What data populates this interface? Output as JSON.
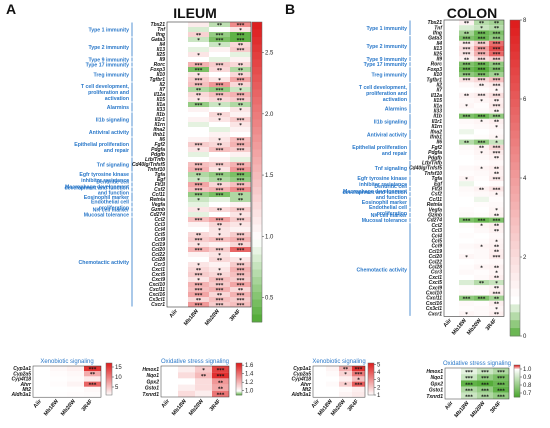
{
  "panels": {
    "a": "A",
    "b": "B"
  },
  "titles": {
    "ileum": "ILEUM",
    "colon": "COLON"
  },
  "columns": [
    "Aiir",
    "Mb18W",
    "Mb20W",
    "3R4F"
  ],
  "genes": [
    "Tbx21",
    "Tnf",
    "Ifng",
    "Gata3",
    "Il4",
    "Il13",
    "Il25",
    "Il9",
    "Rorc",
    "Foxp3",
    "Il10",
    "Tgfbr1",
    "Il2",
    "Il7",
    "Il12a",
    "Il15",
    "Il1a",
    "Il33",
    "Il1b",
    "Il1r1",
    "Il1rn",
    "Ifna2",
    "Ifnb1",
    "Il6",
    "Fgf2",
    "Pdgfa",
    "Pdgfb",
    "Ltb/Tnfb",
    "Cd40lg/Tnfsf5",
    "Tnfsf10",
    "Tgfa",
    "Egf",
    "Flt3l",
    "Csf2",
    "Ccl11",
    "Retnla",
    "Vegfa",
    "Gzmb",
    "Cd274",
    "Ccl2",
    "Ccl3",
    "Ccl4",
    "Ccl5",
    "Ccl9",
    "Ccl19",
    "Ccl20",
    "Ccl22",
    "Ccl28",
    "Ccr3",
    "Cxcl1",
    "Cxcl5",
    "Cxcl9",
    "Cxcl10",
    "Cxcl11",
    "Cxcl16",
    "Cx3cl1",
    "Cxcr1"
  ],
  "categories": [
    {
      "label": "Type 1 immunity",
      "start": 0,
      "end": 2
    },
    {
      "label": "Type 2 immunity",
      "start": 3,
      "end": 6
    },
    {
      "label": "Type 9 immunity",
      "start": 7,
      "end": 7
    },
    {
      "label": "Type 17 immunity",
      "start": 8,
      "end": 8
    },
    {
      "label": "Treg immunity",
      "start": 9,
      "end": 11
    },
    {
      "label": "T cell development, proliferation and activation",
      "start": 12,
      "end": 15
    },
    {
      "label": "Alarmins",
      "start": 16,
      "end": 17
    },
    {
      "label": "Il1b signaling",
      "start": 18,
      "end": 20
    },
    {
      "label": "Antiviral activity",
      "start": 21,
      "end": 22
    },
    {
      "label": "Epithelial proliferation and repair",
      "start": 23,
      "end": 26
    },
    {
      "label": "Tnf signaling",
      "start": 27,
      "end": 29
    },
    {
      "label": "Egfr tyrosine kinase inhibitor resistance",
      "start": 30,
      "end": 31
    },
    {
      "label": "Dendritic cell development and function",
      "start": 32,
      "end": 32
    },
    {
      "label": "Macrophage development and function",
      "start": 33,
      "end": 33
    },
    {
      "label": "Eosinophil marker",
      "start": 34,
      "end": 35
    },
    {
      "label": "Endothelial cell proliferation",
      "start": 36,
      "end": 36
    },
    {
      "label": "NK cell marker",
      "start": 37,
      "end": 37
    },
    {
      "label": "Mucosal tolerance",
      "start": 38,
      "end": 38
    },
    {
      "label": "Chemotactic activity",
      "start": 39,
      "end": 56
    }
  ],
  "xeno_genes": [
    "Cyp1a1",
    "Cyp2a5",
    "Cyp4f18",
    "Ahrr",
    "Mt2",
    "Aldh3a1"
  ],
  "oxid_genes": [
    "Hmox1",
    "Nqo1",
    "Gpx2",
    "Gsto1",
    "Txnrd1"
  ],
  "sub_titles": {
    "xeno": "Xenobiotic signaling",
    "oxid": "Oxidative stress signaling"
  },
  "chart_data": [
    {
      "type": "heatmap",
      "panel": "A",
      "title": "ILEUM",
      "columns": [
        "Aiir",
        "Mb18W",
        "Mb20W",
        "3R4F"
      ],
      "colorbar": {
        "min": 0.3,
        "max": 2.75,
        "ticks": [
          0.5,
          1.0,
          1.5,
          2.0,
          2.5
        ]
      },
      "values": [
        [
          1,
          1.15,
          0.75,
          1.9
        ],
        [
          1,
          0.85,
          1.0,
          1.2
        ],
        [
          1,
          1.35,
          0.6,
          0.4
        ],
        [
          1,
          0.8,
          0.5,
          0.4
        ],
        [
          1,
          1.0,
          0.8,
          1.3
        ],
        [
          1,
          0.9,
          1.1,
          1.4
        ],
        [
          1,
          1.2,
          1.0,
          0.9
        ],
        [
          1,
          1.0,
          0.9,
          1.1
        ],
        [
          1,
          1.6,
          1.4,
          1.3
        ],
        [
          1,
          0.5,
          1.3,
          0.7
        ],
        [
          1,
          1.2,
          1.0,
          1.3
        ],
        [
          1,
          1.4,
          1.2,
          1.7
        ],
        [
          1,
          1.5,
          1.8,
          1.3
        ],
        [
          1,
          0.7,
          0.6,
          0.8
        ],
        [
          1,
          1.3,
          1.5,
          1.6
        ],
        [
          1,
          1.2,
          1.3,
          1.4
        ],
        [
          1,
          0.6,
          0.8,
          0.7
        ],
        [
          1,
          1.1,
          1.0,
          1.2
        ],
        [
          1,
          1.0,
          1.3,
          1.1
        ],
        [
          1,
          1.1,
          1.2,
          1.4
        ],
        [
          1,
          0.9,
          1.0,
          1.2
        ],
        [
          1,
          1.0,
          0.9,
          1.1
        ],
        [
          1,
          1.0,
          1.1,
          1.0
        ],
        [
          1,
          1.1,
          1.2,
          1.5
        ],
        [
          1,
          1.4,
          1.3,
          1.6
        ],
        [
          1,
          1.2,
          1.5,
          1.4
        ],
        [
          1,
          0.9,
          1.0,
          1.1
        ],
        [
          1,
          1.0,
          1.1,
          0.9
        ],
        [
          1,
          1.5,
          1.4,
          1.6
        ],
        [
          1,
          1.6,
          1.2,
          1.8
        ],
        [
          1,
          0.7,
          0.6,
          0.5
        ],
        [
          1,
          0.8,
          0.7,
          0.6
        ],
        [
          1,
          1.7,
          1.3,
          1.5
        ],
        [
          1,
          1.5,
          1.6,
          1.9
        ],
        [
          1,
          0.6,
          0.5,
          0.7
        ],
        [
          1,
          0.8,
          0.9,
          0.7
        ],
        [
          1,
          0.9,
          1.0,
          1.1
        ],
        [
          1,
          1.2,
          1.3,
          1.4
        ],
        [
          1,
          0.9,
          1.0,
          1.2
        ],
        [
          1,
          1.5,
          1.7,
          1.4
        ],
        [
          1,
          1.1,
          1.3,
          1.2
        ],
        [
          1,
          1.0,
          1.2,
          1.1
        ],
        [
          1,
          1.3,
          1.2,
          1.4
        ],
        [
          1,
          1.4,
          1.5,
          1.6
        ],
        [
          1,
          1.2,
          1.1,
          1.3
        ],
        [
          1,
          1.6,
          1.4,
          2.2
        ],
        [
          1,
          1.1,
          1.2,
          1.0
        ],
        [
          1,
          1.0,
          1.3,
          1.2
        ],
        [
          1,
          1.2,
          1.1,
          1.4
        ],
        [
          1,
          1.3,
          1.2,
          1.6
        ],
        [
          1,
          1.4,
          1.3,
          1.5
        ],
        [
          1,
          1.2,
          1.5,
          1.4
        ],
        [
          1,
          1.6,
          1.4,
          1.7
        ],
        [
          1,
          1.5,
          1.6,
          1.3
        ],
        [
          1,
          1.7,
          1.3,
          1.6
        ],
        [
          1,
          1.3,
          1.5,
          1.4
        ],
        [
          1,
          1.8,
          1.4,
          1.5
        ]
      ]
    },
    {
      "type": "heatmap",
      "panel": "B",
      "title": "COLON",
      "columns": [
        "Aiir",
        "Mb18W",
        "Mb20W",
        "3R4F"
      ],
      "colorbar": {
        "min": 0,
        "max": 8,
        "ticks": [
          0,
          2,
          4,
          6,
          8
        ]
      },
      "values": [
        [
          1,
          1.4,
          0.6,
          0.5
        ],
        [
          1,
          0.8,
          0.7,
          0.6
        ],
        [
          1,
          0.5,
          0.2,
          0.3
        ],
        [
          1,
          0.3,
          0.2,
          0.4
        ],
        [
          1,
          1.6,
          2.5,
          5.5
        ],
        [
          1,
          2.0,
          4.0,
          6.5
        ],
        [
          1,
          1.8,
          3.5,
          5.8
        ],
        [
          1,
          1.4,
          2.0,
          2.5
        ],
        [
          1,
          0.3,
          0.2,
          0.4
        ],
        [
          1,
          0.2,
          0.1,
          0.3
        ],
        [
          1,
          0.4,
          0.3,
          0.5
        ],
        [
          1,
          1.8,
          2.2,
          3.0
        ],
        [
          1,
          1.2,
          1.4,
          1.6
        ],
        [
          1,
          1.0,
          1.1,
          1.3
        ],
        [
          1,
          1.4,
          1.6,
          2.0
        ],
        [
          1,
          1.2,
          1.3,
          1.5
        ],
        [
          1,
          1.3,
          1.1,
          1.7
        ],
        [
          1,
          1.1,
          1.2,
          1.4
        ],
        [
          1,
          0.3,
          0.2,
          0.4
        ],
        [
          1,
          1.2,
          1.3,
          1.5
        ],
        [
          1,
          1.1,
          1.2,
          1.3
        ],
        [
          1,
          0.9,
          1.0,
          1.2
        ],
        [
          1,
          1.0,
          1.1,
          1.3
        ],
        [
          1,
          0.6,
          0.4,
          0.7
        ],
        [
          1,
          1.2,
          1.4,
          2.2
        ],
        [
          1,
          1.1,
          1.3,
          1.6
        ],
        [
          1,
          1.0,
          1.2,
          1.4
        ],
        [
          1,
          1.0,
          1.1,
          1.2
        ],
        [
          1,
          1.2,
          1.3,
          1.5
        ],
        [
          1,
          1.1,
          1.2,
          1.4
        ],
        [
          1,
          1.3,
          1.1,
          1.6
        ],
        [
          1,
          0.9,
          1.0,
          1.1
        ],
        [
          1,
          1.2,
          1.4,
          1.8
        ],
        [
          1,
          1.1,
          1.2,
          1.3
        ],
        [
          1,
          1.0,
          0.9,
          1.1
        ],
        [
          1,
          1.0,
          1.1,
          1.2
        ],
        [
          1,
          1.1,
          1.0,
          1.3
        ],
        [
          1,
          1.2,
          1.1,
          1.4
        ],
        [
          1,
          0.3,
          0.2,
          0.3
        ],
        [
          1,
          1.1,
          1.3,
          1.5
        ],
        [
          1,
          1.0,
          1.2,
          1.4
        ],
        [
          1,
          1.1,
          1.0,
          1.2
        ],
        [
          1,
          1.0,
          1.1,
          1.3
        ],
        [
          1,
          1.2,
          1.3,
          1.4
        ],
        [
          1,
          1.1,
          1.2,
          1.5
        ],
        [
          1,
          1.3,
          1.2,
          1.6
        ],
        [
          1,
          1.0,
          1.1,
          1.2
        ],
        [
          1,
          1.1,
          1.3,
          1.4
        ],
        [
          1,
          1.2,
          1.1,
          1.3
        ],
        [
          1,
          1.0,
          1.2,
          1.5
        ],
        [
          1,
          0.8,
          0.6,
          0.7
        ],
        [
          1,
          1.1,
          1.2,
          1.4
        ],
        [
          1,
          1.2,
          1.1,
          1.6
        ],
        [
          1,
          0.4,
          0.3,
          0.5
        ],
        [
          1,
          1.2,
          1.1,
          1.5
        ],
        [
          1,
          1.1,
          1.2,
          1.3
        ],
        [
          1,
          1.3,
          1.2,
          1.5
        ]
      ]
    },
    {
      "type": "heatmap",
      "panel": "A",
      "title": "Xenobiotic signaling",
      "rows": [
        "Cyp1a1",
        "Cyp2a5",
        "Cyp4f18",
        "Ahrr",
        "Mt2",
        "Aldh3a1"
      ],
      "columns": [
        "Aiir",
        "Mb18W",
        "Mb20W",
        "3R4F"
      ],
      "colorbar": {
        "min": 1,
        "max": 17,
        "ticks": [
          5,
          10,
          15
        ]
      },
      "values": [
        [
          1,
          1.5,
          2.0,
          15.5
        ],
        [
          1,
          1.2,
          1.5,
          7.0
        ],
        [
          1,
          1.1,
          1.3,
          2.5
        ],
        [
          1,
          1.2,
          1.8,
          12.0
        ],
        [
          1,
          1.0,
          1.1,
          1.5
        ],
        [
          1,
          1.1,
          1.2,
          1.3
        ]
      ]
    },
    {
      "type": "heatmap",
      "panel": "A",
      "title": "Oxidative stress signaling",
      "rows": [
        "Hmox1",
        "Nqo1",
        "Gpx2",
        "Gsto1",
        "Txnrd1"
      ],
      "columns": [
        "Aiir",
        "Mb18W",
        "Mb20W",
        "3R4F"
      ],
      "colorbar": {
        "min": 0.9,
        "max": 1.65,
        "ticks": [
          1.0,
          1.2,
          1.4,
          1.6
        ]
      },
      "values": [
        [
          1,
          1.05,
          1.15,
          1.55
        ],
        [
          1,
          1.1,
          1.2,
          1.6
        ],
        [
          1,
          1.0,
          1.1,
          1.3
        ],
        [
          1,
          1.05,
          1.1,
          1.25
        ],
        [
          1,
          1.1,
          1.05,
          1.4
        ]
      ]
    },
    {
      "type": "heatmap",
      "panel": "B",
      "title": "Xenobiotic signaling",
      "rows": [
        "Cyp1a1",
        "Cyp2a5",
        "Cyp4f18",
        "Ahrr",
        "Mt2",
        "Aldh3a1"
      ],
      "columns": [
        "Aiir",
        "Mb18W",
        "Mb20W",
        "3R4F"
      ],
      "colorbar": {
        "min": 1,
        "max": 5.2,
        "ticks": [
          1,
          2,
          3,
          4,
          5
        ]
      },
      "values": [
        [
          1,
          1.2,
          2.5,
          4.8
        ],
        [
          1,
          1.1,
          1.8,
          3.5
        ],
        [
          1,
          1.0,
          1.3,
          2.2
        ],
        [
          1,
          1.1,
          1.9,
          4.0
        ],
        [
          1,
          1.0,
          1.1,
          1.3
        ],
        [
          1,
          1.0,
          1.2,
          1.4
        ]
      ]
    },
    {
      "type": "heatmap",
      "panel": "B",
      "title": "Oxidative stress signaling",
      "rows": [
        "Hmox1",
        "Nqo1",
        "Gpx2",
        "Gsto1",
        "Txnrd1"
      ],
      "columns": [
        "Aiir",
        "Mb18W",
        "Mb20W",
        "3R4F"
      ],
      "colorbar": {
        "min": 0.65,
        "max": 1.05,
        "ticks": [
          0.7,
          0.8,
          0.9,
          1.0
        ]
      },
      "values": [
        [
          1,
          0.95,
          0.9,
          0.85
        ],
        [
          1,
          0.9,
          0.8,
          0.75
        ],
        [
          1,
          0.7,
          0.68,
          0.72
        ],
        [
          1,
          0.85,
          0.8,
          0.7
        ],
        [
          1,
          0.9,
          0.85,
          0.8
        ]
      ]
    }
  ]
}
